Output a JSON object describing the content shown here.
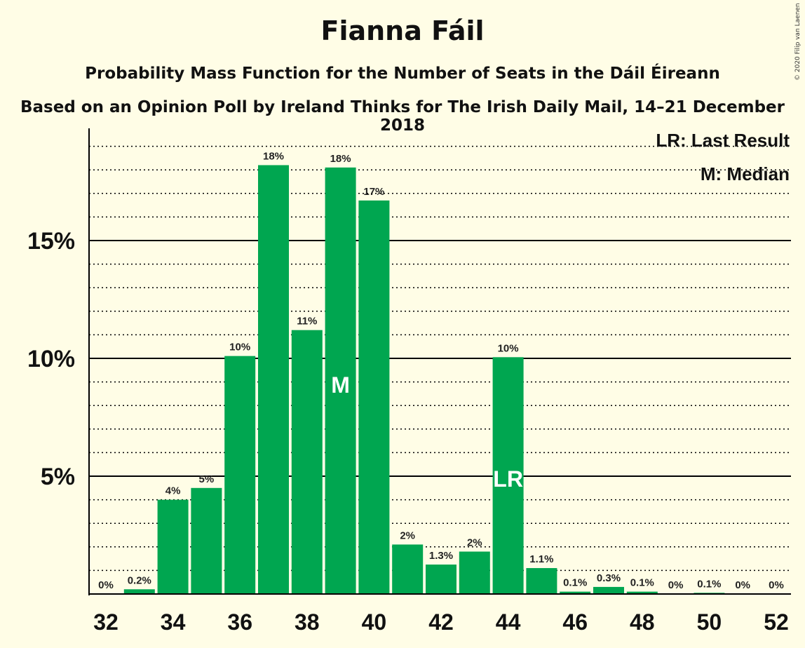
{
  "header": {
    "title": "Fianna Fáil",
    "subtitle1": "Probability Mass Function for the Number of Seats in the Dáil Éireann",
    "subtitle2": "Based on an Opinion Poll by Ireland Thinks for The Irish Daily Mail, 14–21 December 2018",
    "copyright": "© 2020 Filip van Laenen"
  },
  "chart_data": {
    "type": "bar",
    "title": "Fianna Fáil",
    "xlabel": "",
    "ylabel": "",
    "x": [
      32,
      33,
      34,
      35,
      36,
      37,
      38,
      39,
      40,
      41,
      42,
      43,
      44,
      45,
      46,
      47,
      48,
      49,
      50,
      51,
      52
    ],
    "values": [
      0,
      0.2,
      4.0,
      4.5,
      10.1,
      18.2,
      11.2,
      18.1,
      16.7,
      2.1,
      1.25,
      1.8,
      10.05,
      1.1,
      0.1,
      0.3,
      0.1,
      0,
      0.05,
      0,
      0
    ],
    "data_labels": [
      "0%",
      "0.2%",
      "4%",
      "5%",
      "10%",
      "18%",
      "11%",
      "18%",
      "17%",
      "2%",
      "1.3%",
      "2%",
      "10%",
      "1.1%",
      "0.1%",
      "0.3%",
      "0.1%",
      "0%",
      "0.1%",
      "0%",
      "0%"
    ],
    "x_ticks": [
      "32",
      "34",
      "36",
      "38",
      "40",
      "42",
      "44",
      "46",
      "48",
      "50",
      "52"
    ],
    "y_ticks": [
      "5%",
      "10%",
      "15%"
    ],
    "ylim": [
      0,
      20
    ],
    "bar_color": "#00a650",
    "background": "#fffde6",
    "grid": "dotted minor, solid major at 5% steps",
    "markers": [
      {
        "x": 39,
        "label": "M"
      },
      {
        "x": 44,
        "label": "LR"
      }
    ],
    "legend": {
      "placement": "top-right",
      "entries": [
        "LR: Last Result",
        "M: Median"
      ]
    }
  }
}
